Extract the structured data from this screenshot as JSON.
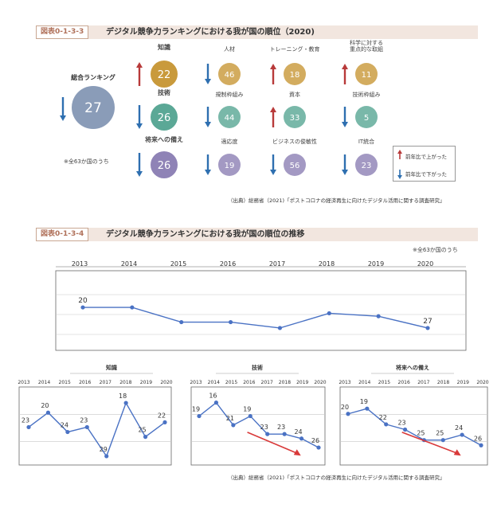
{
  "fig1": {
    "id": "図表0-1-3-3",
    "title": "デジタル競争力ランキングにおける我が国の順位（2020)",
    "overall": {
      "label": "総合ランキング",
      "value": 27,
      "trend": "down"
    },
    "note": "※全63か国のうち",
    "groups": [
      {
        "label": "知識",
        "value": 22,
        "trend": "up",
        "color": "#c99a3c",
        "subs": [
          {
            "label": "人材",
            "value": 46,
            "trend": "down"
          },
          {
            "label": "トレーニング・教育",
            "value": 18,
            "trend": "up"
          },
          {
            "label": "科学に対する\n重点的な取組",
            "value": 11,
            "trend": "up"
          }
        ]
      },
      {
        "label": "技術",
        "value": 26,
        "trend": "down",
        "color": "#5ba896",
        "subs": [
          {
            "label": "規制枠組み",
            "value": 44,
            "trend": "down"
          },
          {
            "label": "資本",
            "value": 33,
            "trend": "up"
          },
          {
            "label": "技術枠組み",
            "value": 5,
            "trend": "down"
          }
        ]
      },
      {
        "label": "将来への備え",
        "value": 26,
        "trend": "down",
        "color": "#8f83b6",
        "subs": [
          {
            "label": "適応度",
            "value": 19,
            "trend": "down"
          },
          {
            "label": "ビジネスの俊敏性",
            "value": 56,
            "trend": "down"
          },
          {
            "label": "IT統合",
            "value": 23,
            "trend": "down"
          }
        ]
      }
    ],
    "legend": {
      "up": "前年比で上がった",
      "down": "前年比で下がった"
    },
    "source": "（出典）総務省（2021)「ポストコロナの経済再生に向けたデジタル活用に関する調査研究」",
    "colors": {
      "overall": "#8a9cb8",
      "up": "#b83a3a",
      "down": "#2e6fb0"
    }
  },
  "fig2": {
    "id": "図表0-1-3-4",
    "title": "デジタル競争力ランキングにおける我が国の順位の推移",
    "note": "※全63か国のうち",
    "source": "（出典）総務省（2021)「ポストコロナの経済再生に向けたデジタル活用に関する調査研究」"
  },
  "chart_data": [
    {
      "type": "line",
      "name": "overall",
      "x": [
        "2013",
        "2014",
        "2015",
        "2016",
        "2017",
        "2018",
        "2019",
        "2020"
      ],
      "values": [
        20,
        20,
        25,
        25,
        27,
        22,
        23,
        27
      ],
      "labels_shown": {
        "0": "20",
        "7": "27"
      },
      "ylim": [
        17,
        30
      ],
      "inverted": true,
      "grid": true
    },
    {
      "type": "line",
      "name": "知識",
      "title": "知識",
      "x": [
        "2013",
        "2014",
        "2015",
        "2016",
        "2017",
        "2018",
        "2019",
        "2020"
      ],
      "values": [
        23,
        20,
        24,
        23,
        29,
        18,
        25,
        22
      ],
      "ylim": [
        17,
        30
      ],
      "inverted": true
    },
    {
      "type": "line",
      "name": "技術",
      "title": "技術",
      "x": [
        "2013",
        "2014",
        "2015",
        "2016",
        "2017",
        "2018",
        "2019",
        "2020"
      ],
      "values": [
        19,
        16,
        21,
        19,
        23,
        23,
        24,
        26
      ],
      "ylim": [
        15,
        29
      ],
      "inverted": true,
      "arrow": "down"
    },
    {
      "type": "line",
      "name": "将来への備え",
      "title": "将来への備え",
      "x": [
        "2013",
        "2014",
        "2015",
        "2016",
        "2017",
        "2018",
        "2019",
        "2020"
      ],
      "values": [
        20,
        19,
        22,
        23,
        25,
        25,
        24,
        26
      ],
      "ylim": [
        17,
        29
      ],
      "inverted": true,
      "arrow": "down"
    }
  ]
}
